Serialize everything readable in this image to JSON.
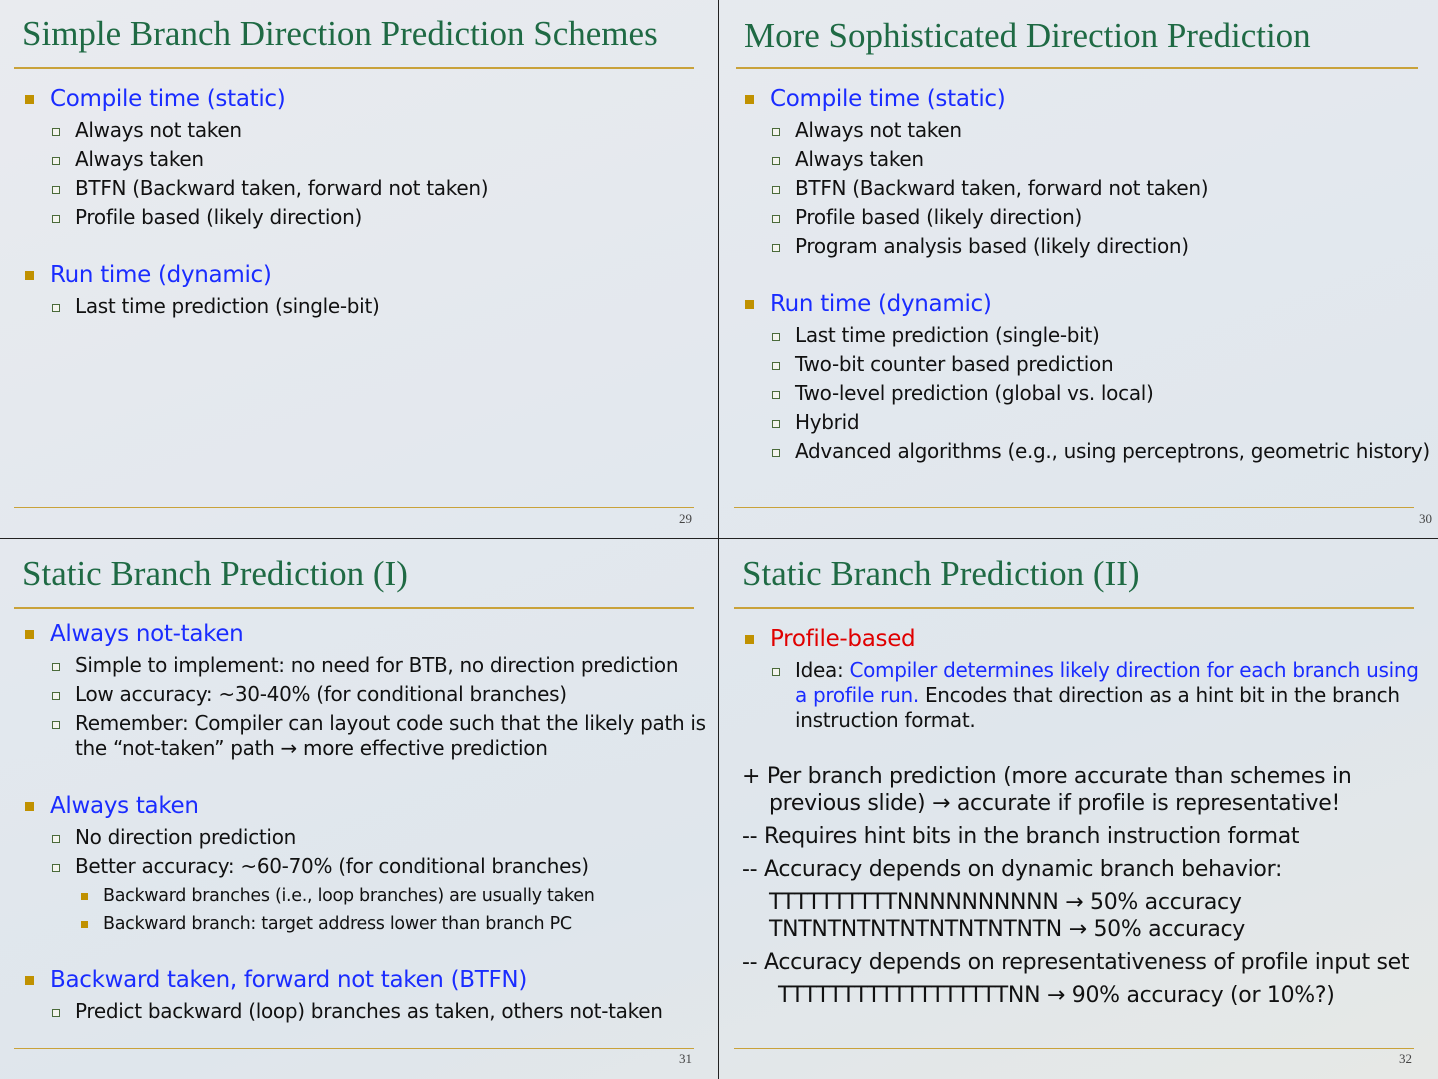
{
  "colors": {
    "title": "#1f6a44",
    "blue": "#1a2cff",
    "red": "#e00000",
    "text": "#111111",
    "rule": "#c9a23a"
  },
  "slides": [
    {
      "title": "Simple Branch Direction Prediction Schemes",
      "number": "29",
      "items": [
        {
          "level": "l1",
          "parts": [
            {
              "text": "Compile time (static)",
              "color": "blue"
            }
          ]
        },
        {
          "level": "l2",
          "parts": [
            {
              "text": "Always not taken"
            }
          ]
        },
        {
          "level": "l2",
          "parts": [
            {
              "text": "Always taken"
            }
          ]
        },
        {
          "level": "l2",
          "parts": [
            {
              "text": "BTFN (Backward taken, forward not taken)"
            }
          ]
        },
        {
          "level": "l2",
          "parts": [
            {
              "text": "Profile based (likely direction)"
            }
          ]
        },
        {
          "level": "l1",
          "gap": true,
          "parts": [
            {
              "text": "Run time (dynamic)",
              "color": "blue"
            }
          ]
        },
        {
          "level": "l2",
          "parts": [
            {
              "text": "Last time prediction (single-bit)"
            }
          ]
        }
      ]
    },
    {
      "title": "More Sophisticated Direction Prediction",
      "number": "30",
      "items": [
        {
          "level": "l1",
          "parts": [
            {
              "text": "Compile time (static)",
              "color": "blue"
            }
          ]
        },
        {
          "level": "l2",
          "parts": [
            {
              "text": "Always not taken"
            }
          ]
        },
        {
          "level": "l2",
          "parts": [
            {
              "text": "Always taken"
            }
          ]
        },
        {
          "level": "l2",
          "parts": [
            {
              "text": "BTFN (Backward taken, forward not taken)"
            }
          ]
        },
        {
          "level": "l2",
          "parts": [
            {
              "text": "Profile based (likely direction)"
            }
          ]
        },
        {
          "level": "l2",
          "parts": [
            {
              "text": "Program analysis based  (likely direction)"
            }
          ]
        },
        {
          "level": "l1",
          "gap": true,
          "parts": [
            {
              "text": "Run time (dynamic)",
              "color": "blue"
            }
          ]
        },
        {
          "level": "l2",
          "parts": [
            {
              "text": "Last time prediction (single-bit)"
            }
          ]
        },
        {
          "level": "l2",
          "parts": [
            {
              "text": "Two-bit counter based prediction"
            }
          ]
        },
        {
          "level": "l2",
          "parts": [
            {
              "text": "Two-level prediction (global vs. local)"
            }
          ]
        },
        {
          "level": "l2",
          "parts": [
            {
              "text": "Hybrid"
            }
          ]
        },
        {
          "level": "l2",
          "parts": [
            {
              "text": "Advanced algorithms (e.g., using perceptrons, geometric history)"
            }
          ]
        }
      ]
    },
    {
      "title": "Static Branch Prediction (I)",
      "number": "31",
      "items": [
        {
          "level": "l1",
          "parts": [
            {
              "text": "Always not-taken",
              "color": "blue"
            }
          ]
        },
        {
          "level": "l2",
          "parts": [
            {
              "text": "Simple to implement: no need for BTB, no direction prediction"
            }
          ]
        },
        {
          "level": "l2",
          "parts": [
            {
              "text": "Low accuracy: ~30-40% (for conditional branches)"
            }
          ]
        },
        {
          "level": "l2",
          "parts": [
            {
              "text": "Remember: Compiler can layout code such that the likely path is the “not-taken” path → more effective prediction"
            }
          ]
        },
        {
          "level": "l1",
          "gap": true,
          "parts": [
            {
              "text": "Always taken",
              "color": "blue"
            }
          ]
        },
        {
          "level": "l2",
          "parts": [
            {
              "text": "No direction prediction"
            }
          ]
        },
        {
          "level": "l2",
          "parts": [
            {
              "text": "Better accuracy: ~60-70% (for conditional branches)"
            }
          ]
        },
        {
          "level": "l3",
          "parts": [
            {
              "text": "Backward branches (i.e., loop branches) are usually taken"
            }
          ]
        },
        {
          "level": "l3",
          "parts": [
            {
              "text": "Backward branch: target address lower than branch PC"
            }
          ]
        },
        {
          "level": "l1",
          "gap": true,
          "parts": [
            {
              "text": "Backward taken, forward not taken (BTFN)",
              "color": "blue"
            }
          ]
        },
        {
          "level": "l2",
          "parts": [
            {
              "text": "Predict backward (loop) branches as taken, others not-taken"
            }
          ]
        }
      ]
    },
    {
      "title": "Static Branch Prediction (II)",
      "number": "32",
      "items": [
        {
          "level": "l1",
          "parts": [
            {
              "text": "Profile-based",
              "color": "red"
            }
          ]
        },
        {
          "level": "l2",
          "parts": [
            {
              "text": "Idea: "
            },
            {
              "text": "Compiler determines likely direction for each branch using a profile run.",
              "color": "blue"
            },
            {
              "text": " Encodes that direction as a hint bit in the branch instruction format."
            }
          ]
        },
        {
          "level": "plain",
          "gap": true,
          "parts": [
            {
              "text": "+ Per branch prediction (more accurate than schemes in previous slide) → accurate if profile is representative!"
            }
          ]
        },
        {
          "level": "plain",
          "parts": [
            {
              "text": "-- Requires hint bits in the branch instruction format"
            }
          ]
        },
        {
          "level": "plain",
          "parts": [
            {
              "text": "-- Accuracy depends on dynamic branch behavior:"
            }
          ]
        },
        {
          "level": "plain",
          "indent": true,
          "parts": [
            {
              "text": "TTTTTTTTTTNNNNNNNNNN → 50% accuracy"
            }
          ]
        },
        {
          "level": "plain",
          "indent": true,
          "tight": true,
          "parts": [
            {
              "text": "TNTNTNTNTNTNTNTNTNTN → 50% accuracy"
            }
          ]
        },
        {
          "level": "plain",
          "parts": [
            {
              "text": "-- Accuracy depends on representativeness of profile input set"
            }
          ]
        },
        {
          "level": "plain",
          "indent": true,
          "deep": true,
          "parts": [
            {
              "text": "TTTTTTTTTTTTTTTTTTNN → 90% accuracy (or 10%?)"
            }
          ]
        }
      ]
    }
  ]
}
